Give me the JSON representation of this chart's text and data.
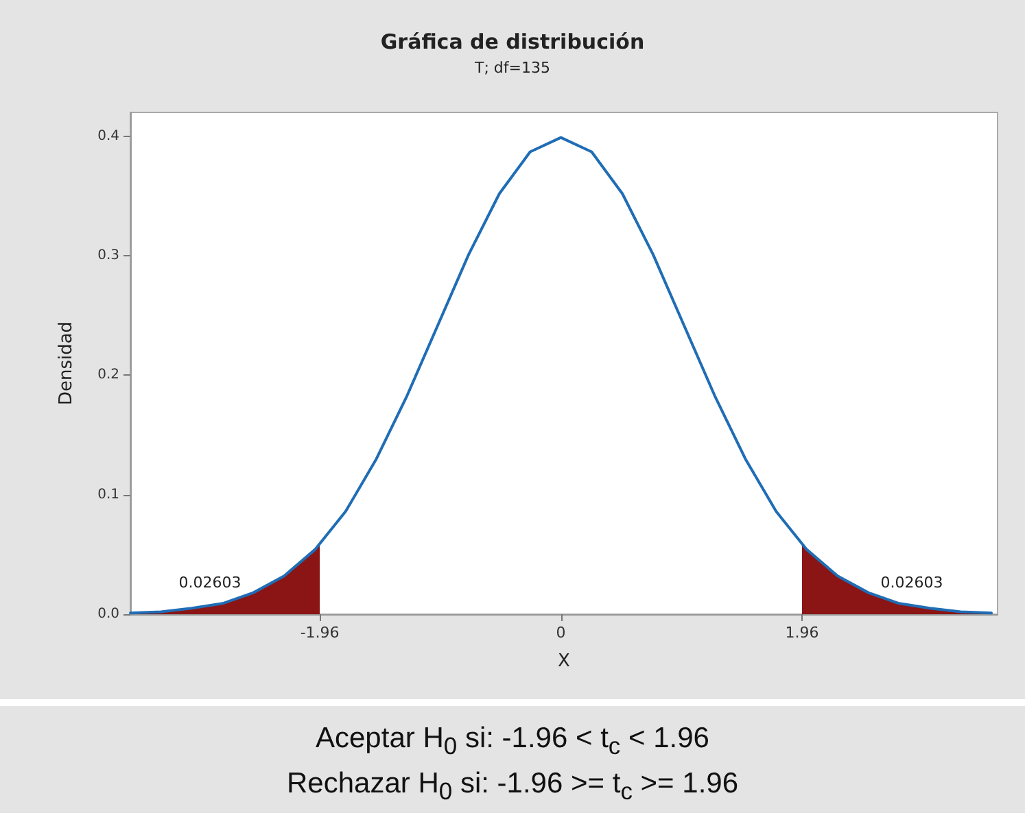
{
  "chart_data": {
    "type": "line",
    "title": "Gráfica de distribución",
    "subtitle": "T; df=135",
    "xlabel": "X",
    "ylabel": "Densidad",
    "xlim": [
      -3.5,
      3.55
    ],
    "xticks": [
      -1.96,
      0,
      1.96
    ],
    "ylim": [
      0,
      0.42
    ],
    "yticks": [
      {
        "value": 0,
        "label": "0.0"
      },
      {
        "value": 0.1,
        "label": "0.1"
      },
      {
        "value": 0.2,
        "label": "0.2"
      },
      {
        "value": 0.3,
        "label": "0.3"
      },
      {
        "value": 0.4,
        "label": "0.4"
      }
    ],
    "series": [
      {
        "type": "area",
        "color": "#8b1414",
        "x": [
          -3.5,
          -3.25,
          -3,
          -2.75,
          -2.5,
          -2.25,
          -1.96
        ],
        "values": [
          0.001,
          0.002,
          0.005,
          0.009,
          0.018,
          0.032,
          0.059
        ]
      },
      {
        "type": "area",
        "color": "#8b1414",
        "x": [
          1.96,
          2,
          2.25,
          2.5,
          2.75,
          3,
          3.25,
          3.5
        ],
        "values": [
          0.059,
          0.054,
          0.032,
          0.018,
          0.009,
          0.005,
          0.002,
          0.001
        ]
      },
      {
        "color": "#1f6db5",
        "x": [
          -3.5,
          -3.25,
          -3,
          -2.75,
          -2.5,
          -2.25,
          -2,
          -1.75,
          -1.5,
          -1.25,
          -1,
          -0.75,
          -0.5,
          -0.25,
          0,
          0.25,
          0.5,
          0.75,
          1,
          1.25,
          1.5,
          1.75,
          2,
          2.25,
          2.5,
          2.75,
          3,
          3.25,
          3.5
        ],
        "values": [
          0.001,
          0.002,
          0.005,
          0.009,
          0.018,
          0.032,
          0.054,
          0.086,
          0.13,
          0.183,
          0.242,
          0.301,
          0.352,
          0.387,
          0.399,
          0.387,
          0.352,
          0.301,
          0.242,
          0.183,
          0.13,
          0.086,
          0.054,
          0.032,
          0.018,
          0.009,
          0.005,
          0.002,
          0.001
        ]
      }
    ],
    "annotations": [
      "0.02603",
      "0.02603",
      "Aceptar H$_{0}$ si: -1.96 < t$_{c}$ < 1.96",
      "Rechazar H$_{0}$ si: -1.96 >= t$_{c}$ >= 1.96"
    ],
    "grid": false,
    "marker": "none",
    "line_style": "solid"
  }
}
